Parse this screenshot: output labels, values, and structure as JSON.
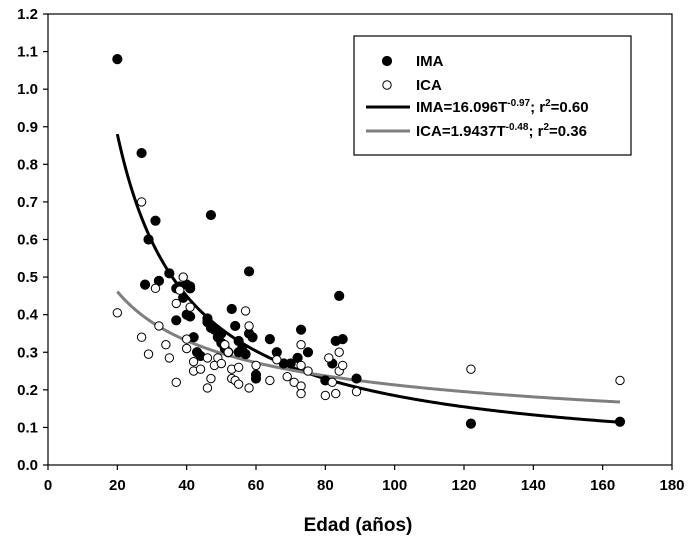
{
  "chart_data": {
    "type": "scatter",
    "xlabel": "Edad (años)",
    "ylabel": "",
    "xlim": [
      0,
      180
    ],
    "ylim": [
      0,
      1.2
    ],
    "x_ticks": [
      "0",
      "20",
      "40",
      "60",
      "80",
      "100",
      "120",
      "140",
      "160",
      "180"
    ],
    "y_ticks": [
      "0.0",
      "0.1",
      "0.2",
      "0.3",
      "0.4",
      "0.5",
      "0.6",
      "0.7",
      "0.8",
      "0.9",
      "1.0",
      "1.1",
      "1.2"
    ],
    "grid": false,
    "legend_position": "top-right",
    "series": [
      {
        "name": "IMA",
        "marker": "filled-circle",
        "color": "#000000",
        "points": [
          [
            20,
            1.08
          ],
          [
            27,
            0.83
          ],
          [
            29,
            0.6
          ],
          [
            31,
            0.65
          ],
          [
            28,
            0.48
          ],
          [
            32,
            0.49
          ],
          [
            35,
            0.51
          ],
          [
            37,
            0.47
          ],
          [
            37,
            0.385
          ],
          [
            38,
            0.475
          ],
          [
            39,
            0.445
          ],
          [
            40,
            0.48
          ],
          [
            41,
            0.475
          ],
          [
            41,
            0.47
          ],
          [
            40,
            0.4
          ],
          [
            41,
            0.395
          ],
          [
            42,
            0.34
          ],
          [
            43,
            0.3
          ],
          [
            44,
            0.29
          ],
          [
            46,
            0.38
          ],
          [
            46,
            0.39
          ],
          [
            47,
            0.365
          ],
          [
            47,
            0.665
          ],
          [
            48,
            0.36
          ],
          [
            49,
            0.34
          ],
          [
            50,
            0.35
          ],
          [
            50,
            0.325
          ],
          [
            51,
            0.31
          ],
          [
            52,
            0.3
          ],
          [
            53,
            0.415
          ],
          [
            54,
            0.37
          ],
          [
            55,
            0.33
          ],
          [
            55,
            0.3
          ],
          [
            56,
            0.31
          ],
          [
            57,
            0.295
          ],
          [
            58,
            0.35
          ],
          [
            58,
            0.515
          ],
          [
            59,
            0.34
          ],
          [
            60,
            0.24
          ],
          [
            60,
            0.23
          ],
          [
            64,
            0.335
          ],
          [
            66,
            0.3
          ],
          [
            68,
            0.27
          ],
          [
            70,
            0.27
          ],
          [
            72,
            0.285
          ],
          [
            73,
            0.36
          ],
          [
            75,
            0.3
          ],
          [
            80,
            0.225
          ],
          [
            82,
            0.27
          ],
          [
            83,
            0.33
          ],
          [
            84,
            0.45
          ],
          [
            85,
            0.335
          ],
          [
            89,
            0.23
          ],
          [
            122,
            0.11
          ],
          [
            165,
            0.115
          ]
        ]
      },
      {
        "name": "ICA",
        "marker": "open-circle",
        "color": "#000000",
        "points": [
          [
            20,
            0.405
          ],
          [
            27,
            0.7
          ],
          [
            27,
            0.34
          ],
          [
            29,
            0.295
          ],
          [
            31,
            0.47
          ],
          [
            32,
            0.37
          ],
          [
            34,
            0.32
          ],
          [
            35,
            0.285
          ],
          [
            37,
            0.22
          ],
          [
            37,
            0.43
          ],
          [
            38,
            0.465
          ],
          [
            39,
            0.5
          ],
          [
            40,
            0.31
          ],
          [
            40,
            0.335
          ],
          [
            41,
            0.42
          ],
          [
            42,
            0.275
          ],
          [
            42,
            0.25
          ],
          [
            44,
            0.255
          ],
          [
            46,
            0.205
          ],
          [
            46,
            0.285
          ],
          [
            47,
            0.23
          ],
          [
            48,
            0.265
          ],
          [
            49,
            0.285
          ],
          [
            50,
            0.27
          ],
          [
            51,
            0.32
          ],
          [
            52,
            0.3
          ],
          [
            53,
            0.23
          ],
          [
            53,
            0.255
          ],
          [
            54,
            0.225
          ],
          [
            55,
            0.215
          ],
          [
            55,
            0.26
          ],
          [
            57,
            0.41
          ],
          [
            58,
            0.37
          ],
          [
            58,
            0.205
          ],
          [
            60,
            0.265
          ],
          [
            64,
            0.225
          ],
          [
            66,
            0.28
          ],
          [
            69,
            0.235
          ],
          [
            71,
            0.22
          ],
          [
            73,
            0.265
          ],
          [
            73,
            0.32
          ],
          [
            73,
            0.21
          ],
          [
            73,
            0.19
          ],
          [
            75,
            0.25
          ],
          [
            80,
            0.185
          ],
          [
            81,
            0.285
          ],
          [
            82,
            0.22
          ],
          [
            83,
            0.19
          ],
          [
            84,
            0.3
          ],
          [
            84,
            0.25
          ],
          [
            85,
            0.265
          ],
          [
            89,
            0.195
          ],
          [
            122,
            0.255
          ],
          [
            165,
            0.225
          ]
        ]
      }
    ],
    "fits": [
      {
        "name": "IMA",
        "label_main": "IMA=16.096T",
        "label_exp": "-0.97",
        "label_tail": "; r",
        "label_sup2": "2",
        "label_end": "=0.60",
        "a": 16.096,
        "b": -0.97,
        "x_range": [
          20,
          165
        ],
        "color": "#000000"
      },
      {
        "name": "ICA",
        "label_main": "ICA=1.9437T",
        "label_exp": "-0.48",
        "label_tail": "; r",
        "label_sup2": "2",
        "label_end": "=0.36",
        "a": 1.9437,
        "b": -0.48,
        "x_range": [
          20,
          165
        ],
        "color": "#7f7f7f"
      }
    ]
  }
}
